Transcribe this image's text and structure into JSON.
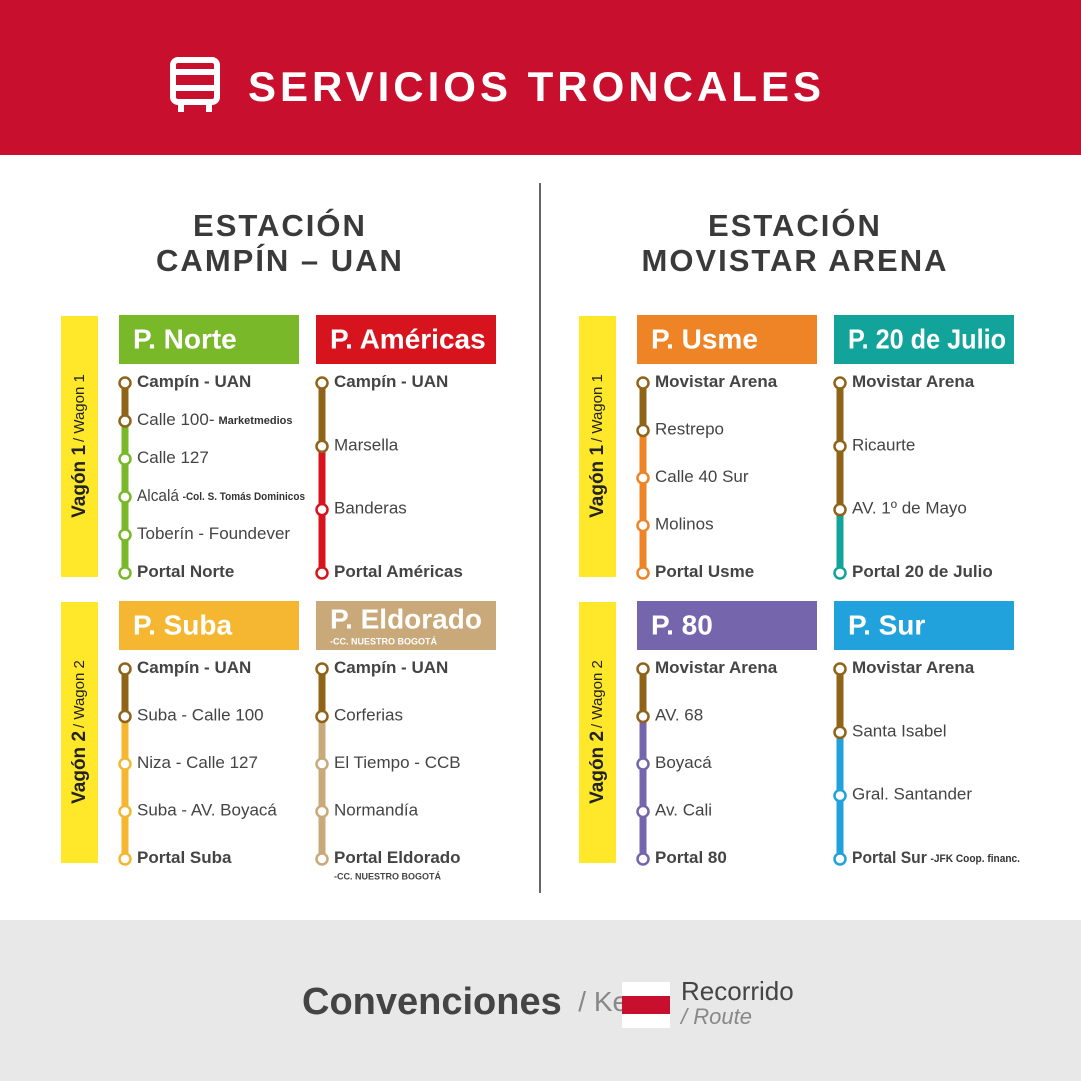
{
  "header": {
    "title": "SERVICIOS TRONCALES"
  },
  "brown": "#8f6419",
  "stations": [
    {
      "name_lines": [
        "ESTACIÓN",
        "CAMPÍN – UAN"
      ],
      "wagons": [
        {
          "label": "Vagón 1",
          "label_en": "/ Wagon 1",
          "routes": [
            {
              "name": "P. Norte",
              "color": "#78b829",
              "shared_stops": 2,
              "stops": [
                {
                  "name": "Campín - UAN"
                },
                {
                  "name": "Calle 100-",
                  "note": "Marketmedios"
                },
                {
                  "name": "Calle 127"
                },
                {
                  "name": "Alcalá",
                  "note": "-Col. S. Tomás Dominicos"
                },
                {
                  "name": "Toberín - Foundever"
                },
                {
                  "name": "Portal Norte"
                }
              ]
            },
            {
              "name": "P. Américas",
              "color": "#d7141e",
              "shared_stops": 2,
              "stops": [
                {
                  "name": "Campín - UAN"
                },
                {
                  "name": "Marsella"
                },
                {
                  "name": "Banderas"
                },
                {
                  "name": "Portal Américas"
                }
              ]
            }
          ]
        },
        {
          "label": "Vagón 2",
          "label_en": "/ Wagon 2",
          "routes": [
            {
              "name": "P. Suba",
              "color": "#f5b731",
              "shared_stops": 2,
              "stops": [
                {
                  "name": "Campín - UAN"
                },
                {
                  "name": "Suba - Calle 100"
                },
                {
                  "name": "Niza - Calle 127"
                },
                {
                  "name": "Suba - AV. Boyacá"
                },
                {
                  "name": "Portal Suba"
                }
              ]
            },
            {
              "name": "P. Eldorado",
              "subtitle": "-CC. NUESTRO BOGOTÁ",
              "color": "#c9a97a",
              "shared_stops": 2,
              "stops": [
                {
                  "name": "Campín - UAN"
                },
                {
                  "name": "Corferias"
                },
                {
                  "name": "El Tiempo - CCB"
                },
                {
                  "name": "Normandía"
                },
                {
                  "name": "Portal Eldorado",
                  "subnote": "-CC. NUESTRO BOGOTÁ"
                }
              ]
            }
          ]
        }
      ]
    },
    {
      "name_lines": [
        "ESTACIÓN",
        "MOVISTAR ARENA"
      ],
      "wagons": [
        {
          "label": "Vagón 1",
          "label_en": "/ Wagon 1",
          "routes": [
            {
              "name": "P. Usme",
              "color": "#ef8427",
              "shared_stops": 2,
              "stops": [
                {
                  "name": "Movistar Arena"
                },
                {
                  "name": "Restrepo"
                },
                {
                  "name": "Calle 40 Sur"
                },
                {
                  "name": "Molinos"
                },
                {
                  "name": "Portal Usme"
                }
              ]
            },
            {
              "name": "P. 20 de Julio",
              "color": "#12a39a",
              "shared_stops": 3,
              "stops": [
                {
                  "name": "Movistar Arena"
                },
                {
                  "name": "Ricaurte"
                },
                {
                  "name": "AV. 1º de Mayo"
                },
                {
                  "name": "Portal 20 de Julio"
                }
              ]
            }
          ]
        },
        {
          "label": "Vagón 2",
          "label_en": "/ Wagon 2",
          "routes": [
            {
              "name": "P. 80",
              "color": "#7565ad",
              "shared_stops": 2,
              "stops": [
                {
                  "name": "Movistar Arena"
                },
                {
                  "name": "AV. 68"
                },
                {
                  "name": "Boyacá"
                },
                {
                  "name": "Av. Cali"
                },
                {
                  "name": "Portal 80"
                }
              ]
            },
            {
              "name": "P. Sur",
              "color": "#21a2dc",
              "shared_stops": 2,
              "stops": [
                {
                  "name": "Movistar Arena"
                },
                {
                  "name": "Santa Isabel"
                },
                {
                  "name": "Gral. Santander"
                },
                {
                  "name": "Portal Sur",
                  "note": "-JFK Coop. financ."
                }
              ]
            }
          ]
        }
      ]
    }
  ],
  "legend": {
    "title": "Convenciones",
    "title_en": "/ Key",
    "item": "Recorrido",
    "item_en": "/ Route"
  }
}
